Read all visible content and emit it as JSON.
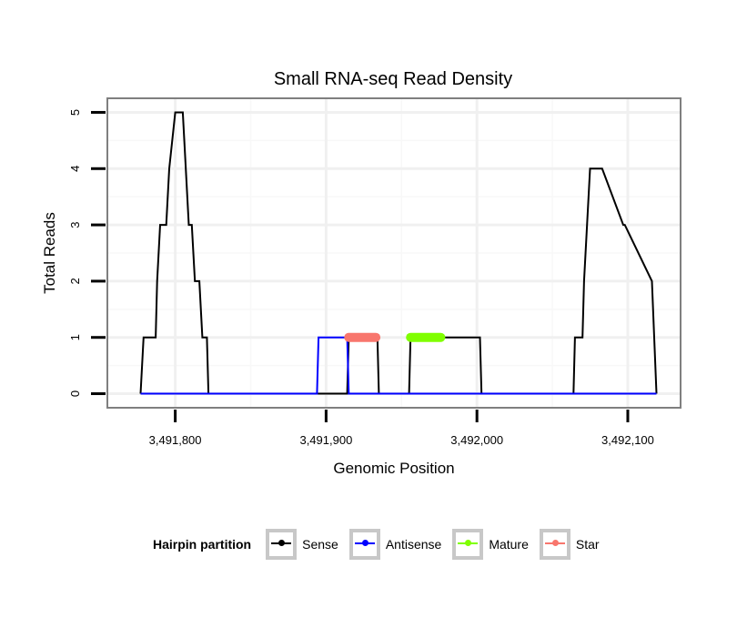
{
  "chart_data": {
    "type": "line",
    "title": "Small RNA-seq Read Density",
    "xlabel": "Genomic Position",
    "ylabel": "Total Reads",
    "xlim": [
      3491755,
      3492135
    ],
    "ylim": [
      -0.25,
      5.25
    ],
    "xticks": [
      3491800,
      3491900,
      3492000,
      3492100
    ],
    "xtick_labels": [
      "3,491,800",
      "3,491,900",
      "3,492,000",
      "3,492,100"
    ],
    "yticks": [
      0,
      1,
      2,
      3,
      4,
      5
    ],
    "ytick_labels": [
      "0",
      "1",
      "2",
      "3",
      "4",
      "5"
    ],
    "grid": true,
    "legend_position": "bottom",
    "legend_title": "Hairpin partition",
    "series": [
      {
        "name": "Sense",
        "color": "#000000",
        "step": true,
        "x": [
          3491777,
          3491779,
          3491787,
          3491788,
          3491790,
          3491794,
          3491796,
          3491800,
          3491805,
          3491809,
          3491811,
          3491813,
          3491816,
          3491818,
          3491821,
          3491822,
          3491914,
          3491915,
          3491916,
          3491934,
          3491935,
          3491955,
          3491956,
          3492002,
          3492003,
          3492064,
          3492065,
          3492070,
          3492071,
          3492073,
          3492075,
          3492083,
          3492097,
          3492098,
          3492116,
          3492119
        ],
        "values": [
          0,
          1,
          1,
          2,
          3,
          3,
          4,
          5,
          5,
          3,
          3,
          2,
          2,
          1,
          1,
          0,
          0,
          1,
          1,
          1,
          0,
          0,
          1,
          1,
          0,
          0,
          1,
          1,
          2,
          3,
          4,
          4,
          3,
          3,
          2,
          0
        ]
      },
      {
        "name": "Antisense",
        "color": "#0000ff",
        "step": true,
        "x": [
          3491777,
          3491894,
          3491895,
          3491914,
          3491915,
          3492119
        ],
        "values": [
          0,
          0,
          1,
          1,
          0,
          0
        ]
      },
      {
        "name": "Mature",
        "color": "#80ff00",
        "step": false,
        "x": [
          3491956,
          3491976
        ],
        "values": [
          1,
          1
        ]
      },
      {
        "name": "Star",
        "color": "#f8766d",
        "step": false,
        "x": [
          3491915,
          3491933
        ],
        "values": [
          1,
          1
        ]
      }
    ]
  }
}
